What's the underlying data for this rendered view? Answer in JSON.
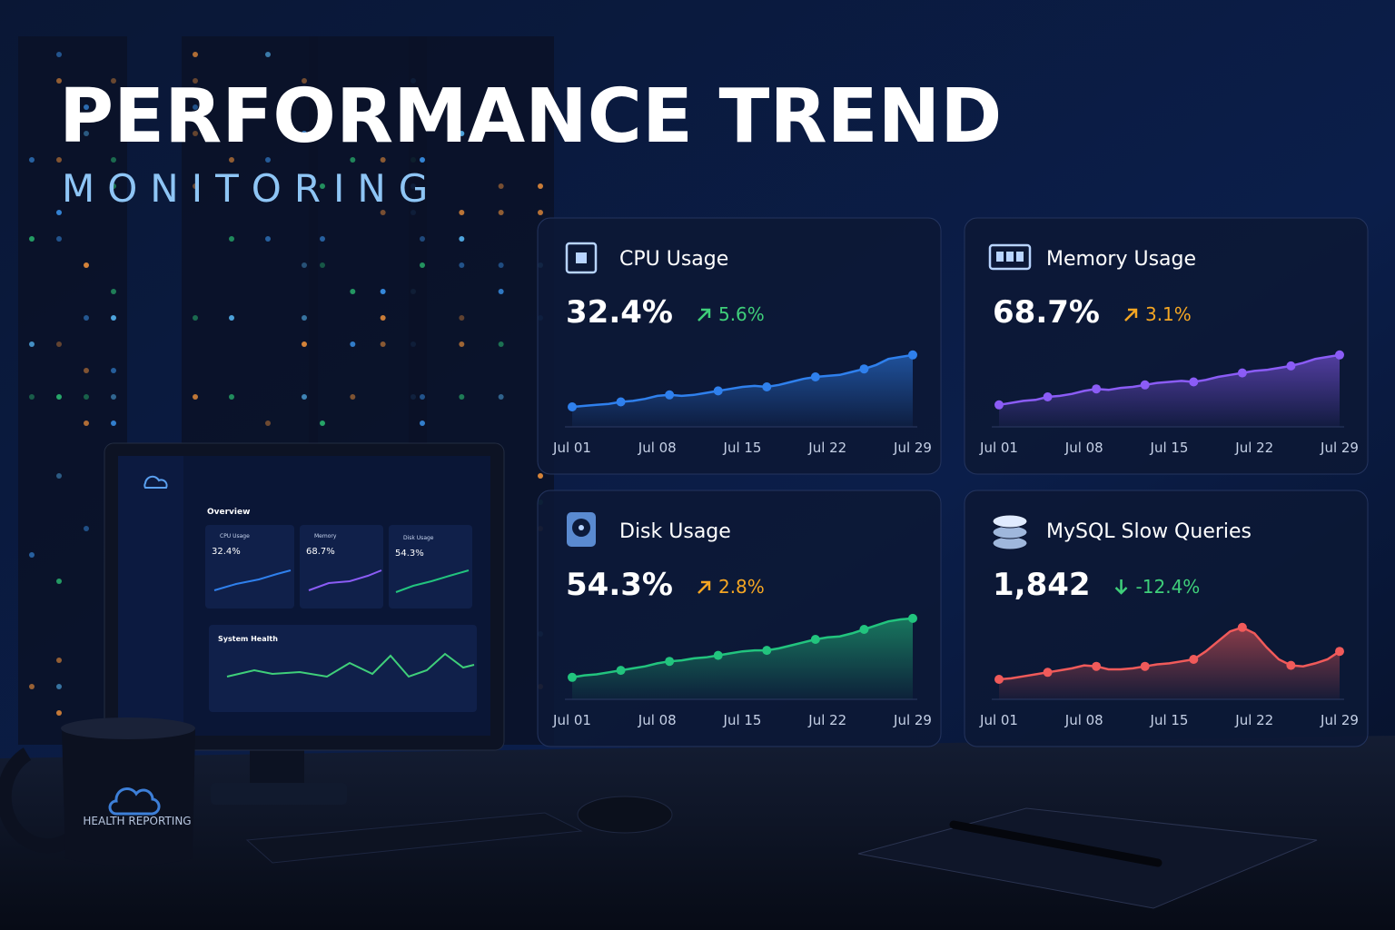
{
  "header": {
    "title": "PERFORMANCE TREND",
    "subtitle": "MONITORING"
  },
  "chart_data": [
    {
      "type": "area",
      "title": "CPU Usage",
      "value": "32.4%",
      "change": "5.6%",
      "trend": "up",
      "color": "#2f80ed",
      "change_color": "#3fcf7a",
      "categories": [
        "Jul 01",
        null,
        null,
        null,
        null,
        null,
        null,
        "Jul 08",
        null,
        null,
        null,
        null,
        null,
        null,
        "Jul 15",
        null,
        null,
        null,
        null,
        null,
        null,
        "Jul 22",
        null,
        null,
        null,
        null,
        null,
        null,
        "Jul 29"
      ],
      "values": [
        20,
        21,
        22,
        23,
        25,
        26,
        28,
        31,
        32,
        31,
        32,
        34,
        36,
        38,
        40,
        41,
        40,
        42,
        45,
        48,
        50,
        51,
        52,
        55,
        58,
        62,
        68,
        70,
        72
      ],
      "ylim": [
        0,
        100
      ]
    },
    {
      "type": "area",
      "title": "Memory Usage",
      "value": "68.7%",
      "change": "3.1%",
      "trend": "up",
      "color": "#8b5cf6",
      "change_color": "#f5a623",
      "categories": [
        "Jul 01",
        null,
        null,
        null,
        null,
        null,
        null,
        "Jul 08",
        null,
        null,
        null,
        null,
        null,
        null,
        "Jul 15",
        null,
        null,
        null,
        null,
        null,
        null,
        "Jul 22",
        null,
        null,
        null,
        null,
        null,
        null,
        "Jul 29"
      ],
      "values": [
        22,
        24,
        26,
        27,
        30,
        31,
        33,
        36,
        38,
        37,
        39,
        40,
        42,
        44,
        45,
        46,
        45,
        47,
        50,
        52,
        54,
        56,
        57,
        59,
        61,
        64,
        68,
        70,
        72
      ],
      "ylim": [
        0,
        100
      ]
    },
    {
      "type": "area",
      "title": "Disk Usage",
      "value": "54.3%",
      "change": "2.8%",
      "trend": "up",
      "color": "#22c47e",
      "change_color": "#f5a623",
      "categories": [
        "Jul 01",
        null,
        null,
        null,
        null,
        null,
        null,
        "Jul 08",
        null,
        null,
        null,
        null,
        null,
        null,
        "Jul 15",
        null,
        null,
        null,
        null,
        null,
        null,
        "Jul 22",
        null,
        null,
        null,
        null,
        null,
        null,
        "Jul 29"
      ],
      "values": [
        22,
        24,
        25,
        27,
        29,
        31,
        33,
        36,
        38,
        39,
        41,
        42,
        44,
        46,
        48,
        49,
        49,
        51,
        54,
        57,
        60,
        62,
        63,
        66,
        70,
        74,
        78,
        80,
        81
      ],
      "ylim": [
        0,
        100
      ]
    },
    {
      "type": "area",
      "title": "MySQL Slow Queries",
      "value": "1,842",
      "change": "-12.4%",
      "trend": "down",
      "color": "#f05a5a",
      "change_color": "#3fcf7a",
      "categories": [
        "Jul 01",
        null,
        null,
        null,
        null,
        null,
        null,
        "Jul 08",
        null,
        null,
        null,
        null,
        null,
        null,
        "Jul 15",
        null,
        null,
        null,
        null,
        null,
        null,
        "Jul 22",
        null,
        null,
        null,
        null,
        null,
        null,
        "Jul 29"
      ],
      "values": [
        20,
        21,
        23,
        25,
        27,
        29,
        31,
        34,
        33,
        30,
        30,
        31,
        33,
        35,
        36,
        38,
        40,
        48,
        58,
        68,
        72,
        66,
        52,
        40,
        34,
        33,
        36,
        40,
        48
      ],
      "ylim": [
        0,
        100
      ]
    }
  ],
  "monitor": {
    "overview": "Overview",
    "health": "System Health",
    "cards": [
      {
        "label": "CPU Usage",
        "value": "32.4%"
      },
      {
        "label": "Memory",
        "value": "68.7%"
      },
      {
        "label": "Disk Usage",
        "value": "54.3%"
      }
    ]
  },
  "mug": {
    "text": "HEALTH REPORTING"
  }
}
